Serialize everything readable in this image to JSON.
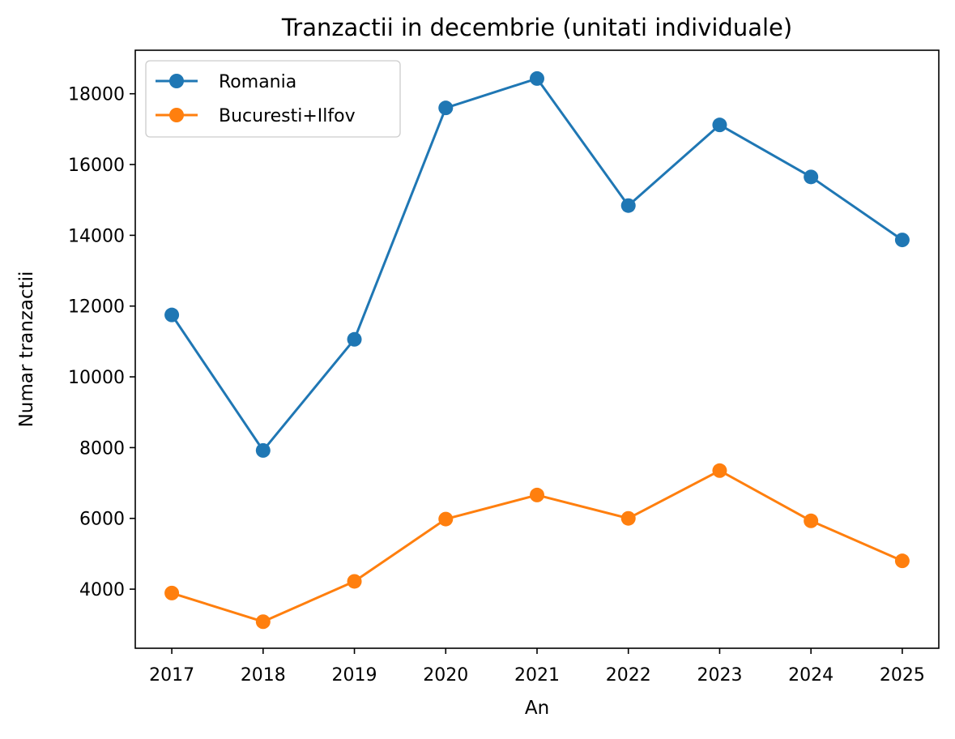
{
  "chart_data": {
    "type": "line",
    "title": "Tranzactii in decembrie (unitati individuale)",
    "xlabel": "An",
    "ylabel": "Numar tranzactii",
    "x": [
      2017,
      2018,
      2019,
      2020,
      2021,
      2022,
      2023,
      2024,
      2025
    ],
    "x_tick_labels": [
      "2017",
      "2018",
      "2019",
      "2020",
      "2021",
      "2022",
      "2023",
      "2024",
      "2025"
    ],
    "y_ticks": [
      4000,
      6000,
      8000,
      10000,
      12000,
      14000,
      16000,
      18000
    ],
    "y_tick_labels": [
      "4000",
      "6000",
      "8000",
      "10000",
      "12000",
      "14000",
      "16000",
      "18000"
    ],
    "xlim": [
      2016.6,
      2025.4
    ],
    "ylim": [
      2330,
      19230
    ],
    "grid": false,
    "legend_position": "upper left",
    "series": [
      {
        "name": "Romania",
        "color": "#1f77b4",
        "marker": "circle",
        "values": [
          11750,
          7920,
          11060,
          17600,
          18430,
          14840,
          17120,
          15650,
          13870
        ]
      },
      {
        "name": "Bucuresti+Ilfov",
        "color": "#ff7f0e",
        "marker": "circle",
        "values": [
          3890,
          3080,
          4220,
          5980,
          6660,
          6000,
          7350,
          5930,
          4800
        ]
      }
    ]
  }
}
